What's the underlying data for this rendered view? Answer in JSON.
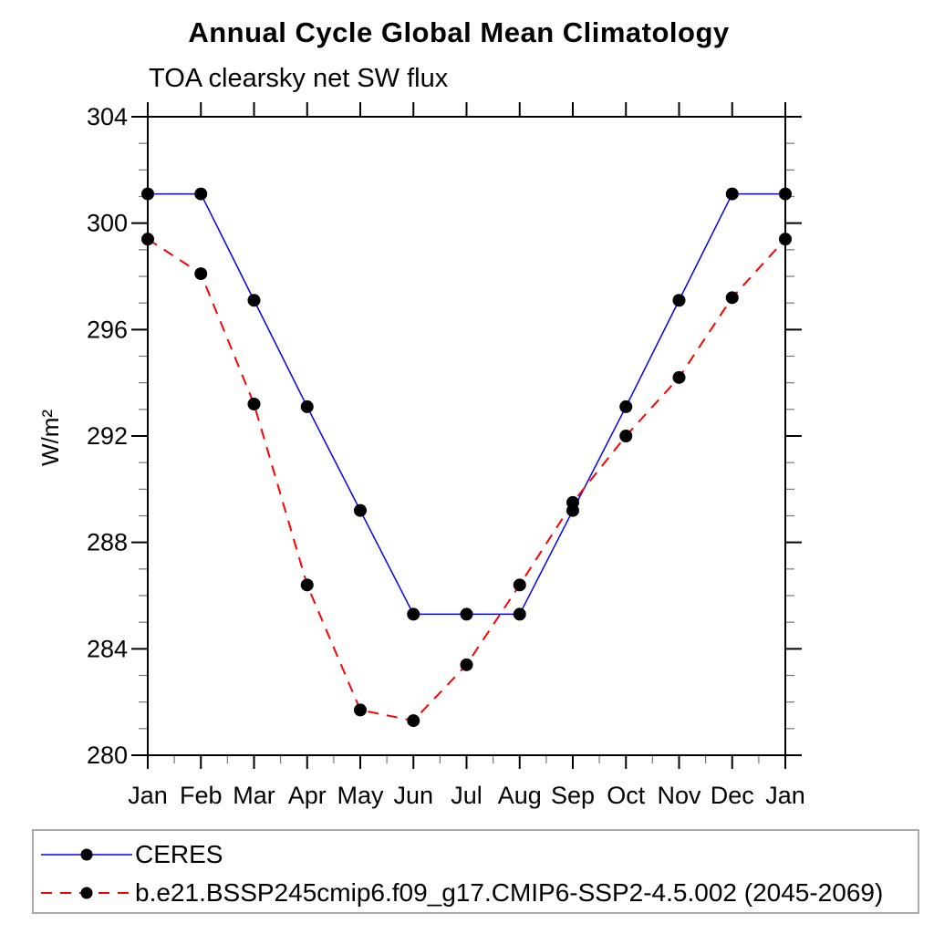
{
  "chart_data": {
    "type": "line",
    "title": "Annual Cycle Global Mean Climatology",
    "subtitle": "TOA clearsky net SW flux",
    "ylabel": "W/m²",
    "xlabel": "",
    "categories": [
      "Jan",
      "Feb",
      "Mar",
      "Apr",
      "May",
      "Jun",
      "Jul",
      "Aug",
      "Sep",
      "Oct",
      "Nov",
      "Dec",
      "Jan"
    ],
    "ylim": [
      280,
      304
    ],
    "ytick_interval_major": 4,
    "ytick_interval_minor": 1,
    "grid": false,
    "legend_position": "bottom-box",
    "series": [
      {
        "name": "CERES",
        "line_color": "#0000ff",
        "line_style": "solid",
        "marker": "filled-circle",
        "marker_color": "#000000",
        "values": [
          301.1,
          301.1,
          297.1,
          293.1,
          289.2,
          285.3,
          285.3,
          285.3,
          289.2,
          293.1,
          297.1,
          301.1,
          301.1
        ]
      },
      {
        "name": "b.e21.BSSP245cmip6.f09_g17.CMIP6-SSP2-4.5.002 (2045-2069)",
        "line_color": "#ff0000",
        "line_style": "dashed",
        "marker": "filled-circle",
        "marker_color": "#000000",
        "values": [
          299.4,
          298.1,
          293.2,
          286.4,
          281.7,
          281.3,
          283.4,
          286.4,
          289.5,
          292.0,
          294.2,
          297.2,
          299.4
        ]
      }
    ]
  }
}
